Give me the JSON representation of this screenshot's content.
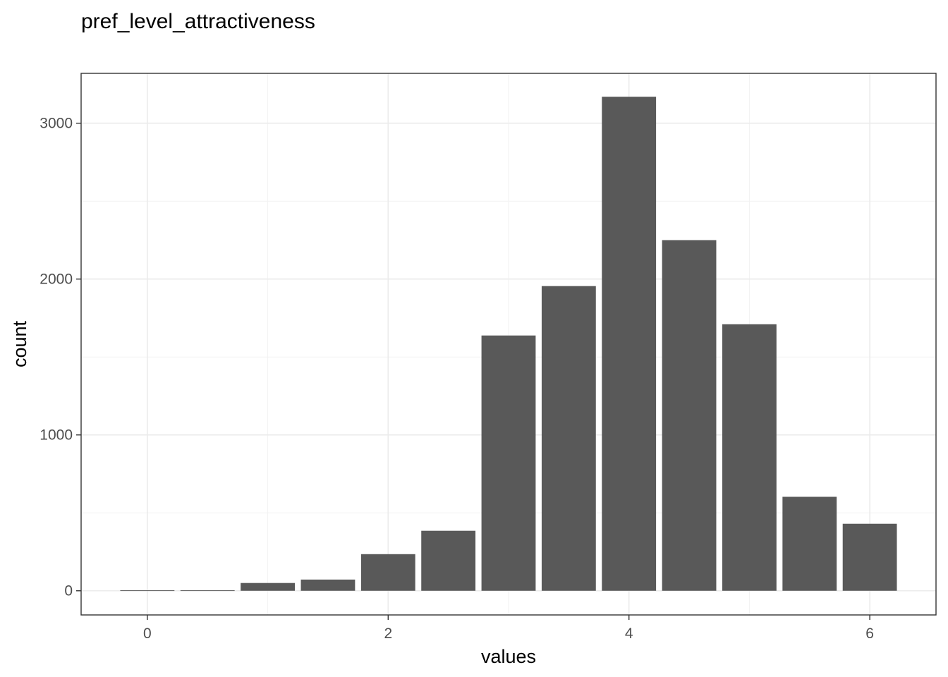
{
  "chart_data": {
    "type": "bar",
    "title": "pref_level_attractiveness",
    "xlabel": "values",
    "ylabel": "count",
    "x_ticks": [
      0,
      2,
      4,
      6
    ],
    "y_ticks": [
      0,
      1000,
      2000,
      3000
    ],
    "xlim": [
      -0.55,
      6.55
    ],
    "ylim": [
      -155,
      3320
    ],
    "bar_width": 0.45,
    "bars": [
      {
        "x": 0.0,
        "value": 3
      },
      {
        "x": 0.5,
        "value": 3
      },
      {
        "x": 1.0,
        "value": 50
      },
      {
        "x": 1.5,
        "value": 72
      },
      {
        "x": 2.0,
        "value": 235
      },
      {
        "x": 2.5,
        "value": 385
      },
      {
        "x": 3.0,
        "value": 1638
      },
      {
        "x": 3.5,
        "value": 1955
      },
      {
        "x": 4.0,
        "value": 3170
      },
      {
        "x": 4.5,
        "value": 2250
      },
      {
        "x": 5.0,
        "value": 1710
      },
      {
        "x": 5.5,
        "value": 603
      },
      {
        "x": 6.0,
        "value": 430
      }
    ],
    "grid": true,
    "colors": {
      "bar": "#595959",
      "grid_major": "#ebebeb",
      "grid_minor": "#f2f2f2",
      "panel_border": "#333333",
      "tick_label": "#4d4d4d",
      "text": "#000000"
    }
  }
}
